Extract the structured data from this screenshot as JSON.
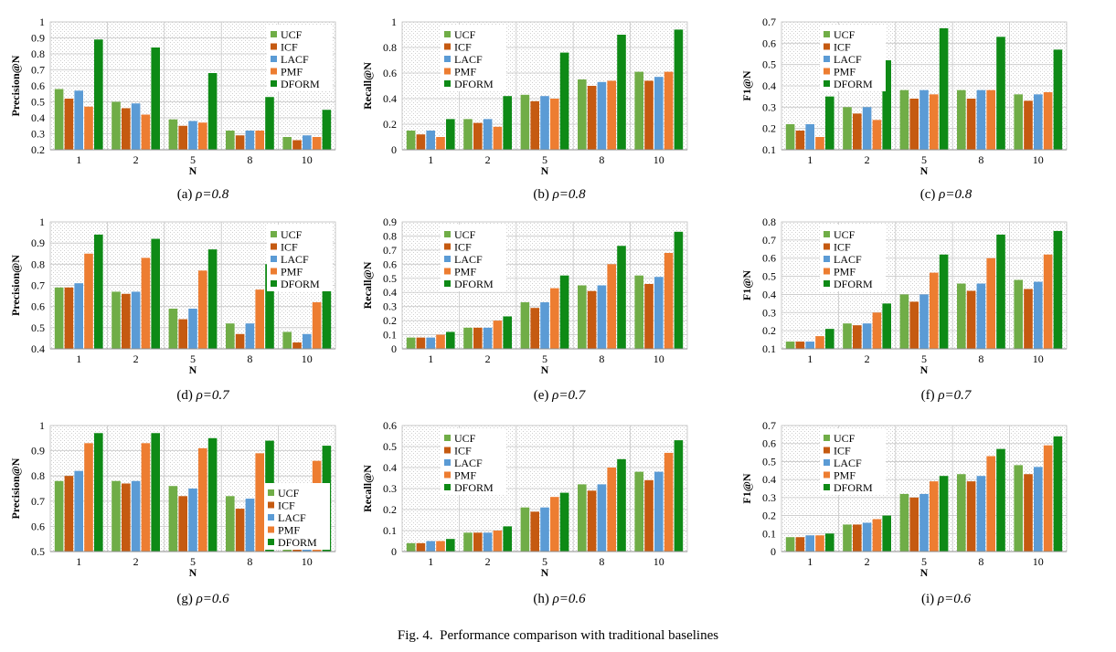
{
  "figure": {
    "label": "Fig. 4.",
    "caption": "Performance comparison with traditional baselines"
  },
  "colors": {
    "UCF": "#70ad47",
    "ICF": "#c55a11",
    "LACF": "#5b9bd5",
    "PMF": "#ed7d31",
    "DFORM": "#0e8a16"
  },
  "legend_labels": [
    "UCF",
    "ICF",
    "LACF",
    "PMF",
    "DFORM"
  ],
  "chart_data": [
    {
      "id": "a",
      "type": "bar",
      "sublabel": "(a)",
      "rho_label": "ρ=0.8",
      "ylabel": "Precision@N",
      "xlabel": "N",
      "categories": [
        "1",
        "2",
        "5",
        "8",
        "10"
      ],
      "ylim": [
        0.2,
        1
      ],
      "yticks": [
        "0.2",
        "0.3",
        "0.4",
        "0.5",
        "0.6",
        "0.7",
        "0.8",
        "0.9",
        "1"
      ],
      "ystep": 0.1,
      "legend": "top-right",
      "series": [
        {
          "name": "UCF",
          "values": [
            0.58,
            0.5,
            0.39,
            0.32,
            0.28
          ]
        },
        {
          "name": "ICF",
          "values": [
            0.52,
            0.46,
            0.35,
            0.29,
            0.26
          ]
        },
        {
          "name": "LACF",
          "values": [
            0.57,
            0.49,
            0.38,
            0.32,
            0.29
          ]
        },
        {
          "name": "PMF",
          "values": [
            0.47,
            0.42,
            0.37,
            0.32,
            0.28
          ]
        },
        {
          "name": "DFORM",
          "values": [
            0.89,
            0.84,
            0.68,
            0.53,
            0.45
          ]
        }
      ]
    },
    {
      "id": "b",
      "type": "bar",
      "sublabel": "(b)",
      "rho_label": "ρ=0.8",
      "ylabel": "Recall@N",
      "xlabel": "N",
      "categories": [
        "1",
        "2",
        "5",
        "8",
        "10"
      ],
      "ylim": [
        0,
        1
      ],
      "yticks": [
        "0",
        "0.2",
        "0.4",
        "0.6",
        "0.8",
        "1"
      ],
      "ystep": 0.2,
      "legend": "top-left",
      "series": [
        {
          "name": "UCF",
          "values": [
            0.15,
            0.24,
            0.43,
            0.55,
            0.61
          ]
        },
        {
          "name": "ICF",
          "values": [
            0.12,
            0.21,
            0.38,
            0.5,
            0.54
          ]
        },
        {
          "name": "LACF",
          "values": [
            0.15,
            0.24,
            0.42,
            0.53,
            0.57
          ]
        },
        {
          "name": "PMF",
          "values": [
            0.1,
            0.18,
            0.4,
            0.54,
            0.61
          ]
        },
        {
          "name": "DFORM",
          "values": [
            0.24,
            0.42,
            0.76,
            0.9,
            0.94
          ]
        }
      ]
    },
    {
      "id": "c",
      "type": "bar",
      "sublabel": "(c)",
      "rho_label": "ρ=0.8",
      "ylabel": "F1@N",
      "xlabel": "N",
      "categories": [
        "1",
        "2",
        "5",
        "8",
        "10"
      ],
      "ylim": [
        0.1,
        0.7
      ],
      "yticks": [
        "0.1",
        "0.2",
        "0.3",
        "0.4",
        "0.5",
        "0.6",
        "0.7"
      ],
      "ystep": 0.1,
      "legend": "top-left",
      "series": [
        {
          "name": "UCF",
          "values": [
            0.22,
            0.3,
            0.38,
            0.38,
            0.36
          ]
        },
        {
          "name": "ICF",
          "values": [
            0.19,
            0.27,
            0.34,
            0.34,
            0.33
          ]
        },
        {
          "name": "LACF",
          "values": [
            0.22,
            0.3,
            0.38,
            0.38,
            0.36
          ]
        },
        {
          "name": "PMF",
          "values": [
            0.16,
            0.24,
            0.36,
            0.38,
            0.37
          ]
        },
        {
          "name": "DFORM",
          "values": [
            0.35,
            0.52,
            0.67,
            0.63,
            0.57
          ]
        }
      ]
    },
    {
      "id": "d",
      "type": "bar",
      "sublabel": "(d)",
      "rho_label": "ρ=0.7",
      "ylabel": "Precision@N",
      "xlabel": "N",
      "categories": [
        "1",
        "2",
        "5",
        "8",
        "10"
      ],
      "ylim": [
        0.4,
        1
      ],
      "yticks": [
        "0.4",
        "0.5",
        "0.6",
        "0.7",
        "0.8",
        "0.9",
        "1"
      ],
      "ystep": 0.1,
      "legend": "top-right",
      "series": [
        {
          "name": "UCF",
          "values": [
            0.69,
            0.67,
            0.59,
            0.52,
            0.48
          ]
        },
        {
          "name": "ICF",
          "values": [
            0.69,
            0.66,
            0.54,
            0.47,
            0.43
          ]
        },
        {
          "name": "LACF",
          "values": [
            0.71,
            0.67,
            0.59,
            0.52,
            0.47
          ]
        },
        {
          "name": "PMF",
          "values": [
            0.85,
            0.83,
            0.77,
            0.68,
            0.62
          ]
        },
        {
          "name": "DFORM",
          "values": [
            0.94,
            0.92,
            0.87,
            0.8,
            0.71
          ]
        }
      ]
    },
    {
      "id": "e",
      "type": "bar",
      "sublabel": "(e)",
      "rho_label": "ρ=0.7",
      "ylabel": "Recall@N",
      "xlabel": "N",
      "categories": [
        "1",
        "2",
        "5",
        "8",
        "10"
      ],
      "ylim": [
        0,
        0.9
      ],
      "yticks": [
        "0",
        "0.1",
        "0.2",
        "0.3",
        "0.4",
        "0.5",
        "0.6",
        "0.7",
        "0.8",
        "0.9"
      ],
      "ystep": 0.1,
      "legend": "top-left",
      "series": [
        {
          "name": "UCF",
          "values": [
            0.08,
            0.15,
            0.33,
            0.45,
            0.52
          ]
        },
        {
          "name": "ICF",
          "values": [
            0.08,
            0.15,
            0.29,
            0.41,
            0.46
          ]
        },
        {
          "name": "LACF",
          "values": [
            0.08,
            0.15,
            0.33,
            0.45,
            0.51
          ]
        },
        {
          "name": "PMF",
          "values": [
            0.1,
            0.2,
            0.43,
            0.6,
            0.68
          ]
        },
        {
          "name": "DFORM",
          "values": [
            0.12,
            0.23,
            0.52,
            0.73,
            0.83
          ]
        }
      ]
    },
    {
      "id": "f",
      "type": "bar",
      "sublabel": "(f)",
      "rho_label": "ρ=0.7",
      "ylabel": "F1@N",
      "xlabel": "N",
      "categories": [
        "1",
        "2",
        "5",
        "8",
        "10"
      ],
      "ylim": [
        0.1,
        0.8
      ],
      "yticks": [
        "0.1",
        "0.2",
        "0.3",
        "0.4",
        "0.5",
        "0.6",
        "0.7",
        "0.8"
      ],
      "ystep": 0.1,
      "legend": "top-left",
      "series": [
        {
          "name": "UCF",
          "values": [
            0.14,
            0.24,
            0.4,
            0.46,
            0.48
          ]
        },
        {
          "name": "ICF",
          "values": [
            0.14,
            0.23,
            0.36,
            0.42,
            0.43
          ]
        },
        {
          "name": "LACF",
          "values": [
            0.14,
            0.24,
            0.4,
            0.46,
            0.47
          ]
        },
        {
          "name": "PMF",
          "values": [
            0.17,
            0.3,
            0.52,
            0.6,
            0.62
          ]
        },
        {
          "name": "DFORM",
          "values": [
            0.21,
            0.35,
            0.62,
            0.73,
            0.75
          ]
        }
      ]
    },
    {
      "id": "g",
      "type": "bar",
      "sublabel": "(g)",
      "rho_label": "ρ=0.6",
      "ylabel": "Precision@N",
      "xlabel": "N",
      "categories": [
        "1",
        "2",
        "5",
        "8",
        "10"
      ],
      "ylim": [
        0.5,
        1
      ],
      "yticks": [
        "0.5",
        "0.6",
        "0.7",
        "0.8",
        "0.9",
        "1"
      ],
      "ystep": 0.1,
      "legend": "bottom-right",
      "series": [
        {
          "name": "UCF",
          "values": [
            0.78,
            0.78,
            0.76,
            0.72,
            0.52
          ]
        },
        {
          "name": "ICF",
          "values": [
            0.8,
            0.77,
            0.72,
            0.67,
            0.51
          ]
        },
        {
          "name": "LACF",
          "values": [
            0.82,
            0.78,
            0.75,
            0.71,
            0.52
          ]
        },
        {
          "name": "PMF",
          "values": [
            0.93,
            0.93,
            0.91,
            0.89,
            0.86
          ]
        },
        {
          "name": "DFORM",
          "values": [
            0.97,
            0.97,
            0.95,
            0.94,
            0.92
          ]
        }
      ]
    },
    {
      "id": "h",
      "type": "bar",
      "sublabel": "(h)",
      "rho_label": "ρ=0.6",
      "ylabel": "Recall@N",
      "xlabel": "N",
      "categories": [
        "1",
        "2",
        "5",
        "8",
        "10"
      ],
      "ylim": [
        0,
        0.6
      ],
      "yticks": [
        "0",
        "0.1",
        "0.2",
        "0.3",
        "0.4",
        "0.5",
        "0.6"
      ],
      "ystep": 0.1,
      "legend": "top-left",
      "series": [
        {
          "name": "UCF",
          "values": [
            0.04,
            0.09,
            0.21,
            0.32,
            0.38
          ]
        },
        {
          "name": "ICF",
          "values": [
            0.04,
            0.09,
            0.19,
            0.29,
            0.34
          ]
        },
        {
          "name": "LACF",
          "values": [
            0.05,
            0.09,
            0.21,
            0.32,
            0.38
          ]
        },
        {
          "name": "PMF",
          "values": [
            0.05,
            0.1,
            0.26,
            0.4,
            0.47
          ]
        },
        {
          "name": "DFORM",
          "values": [
            0.06,
            0.12,
            0.28,
            0.44,
            0.53
          ]
        }
      ]
    },
    {
      "id": "i",
      "type": "bar",
      "sublabel": "(i)",
      "rho_label": "ρ=0.6",
      "ylabel": "F1@N",
      "xlabel": "N",
      "categories": [
        "1",
        "2",
        "5",
        "8",
        "10"
      ],
      "ylim": [
        0,
        0.7
      ],
      "yticks": [
        "0",
        "0.1",
        "0.2",
        "0.3",
        "0.4",
        "0.5",
        "0.6",
        "0.7"
      ],
      "ystep": 0.1,
      "legend": "top-left",
      "series": [
        {
          "name": "UCF",
          "values": [
            0.08,
            0.15,
            0.32,
            0.43,
            0.48
          ]
        },
        {
          "name": "ICF",
          "values": [
            0.08,
            0.15,
            0.3,
            0.39,
            0.43
          ]
        },
        {
          "name": "LACF",
          "values": [
            0.09,
            0.16,
            0.32,
            0.42,
            0.47
          ]
        },
        {
          "name": "PMF",
          "values": [
            0.09,
            0.18,
            0.39,
            0.53,
            0.59
          ]
        },
        {
          "name": "DFORM",
          "values": [
            0.1,
            0.2,
            0.42,
            0.57,
            0.64
          ]
        }
      ]
    }
  ]
}
